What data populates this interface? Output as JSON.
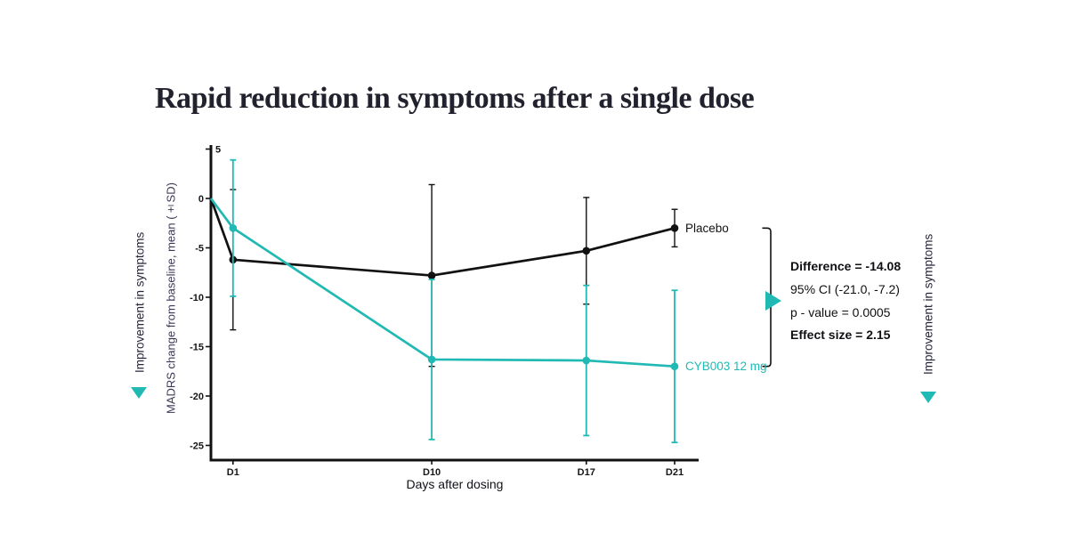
{
  "title": "Rapid reduction in symptoms after a single dose",
  "side_labels": {
    "left_improvement": "Improvement in symptoms",
    "right_improvement": "Improvement in symptoms"
  },
  "chart_data": {
    "type": "line",
    "title": "Rapid reduction in symptoms after a single dose",
    "xlabel": "Days after dosing",
    "ylabel": "MADRS change from baseline, mean (±SD)",
    "x_days": [
      0,
      1,
      10,
      17,
      21
    ],
    "xtick_days": [
      1,
      10,
      17,
      21
    ],
    "xtick_labels": [
      "D1",
      "D10",
      "D17",
      "D21"
    ],
    "yticks": [
      5,
      0,
      -5,
      -10,
      -15,
      -20,
      -25
    ],
    "xlim": [
      0,
      22
    ],
    "ylim": [
      -26.5,
      5.5
    ],
    "grid": false,
    "legend_position": "labels-at-line-end",
    "series": [
      {
        "name": "Placebo",
        "color": "#111111",
        "values": [
          0,
          -6.2,
          -7.8,
          -5.3,
          -3.0
        ],
        "sd": [
          null,
          7.1,
          9.2,
          5.4,
          1.9
        ]
      },
      {
        "name": "CYB003 12 mg",
        "color": "#20b9b3",
        "values": [
          0,
          -3.0,
          -16.3,
          -16.4,
          -17.0
        ],
        "sd": [
          null,
          6.9,
          8.1,
          7.6,
          7.7
        ]
      }
    ],
    "annotation_bracket": {
      "from_value": -3.0,
      "to_value": -17.0,
      "at_day": 21
    }
  },
  "stats_panel": {
    "lines": [
      {
        "text": "Difference = -14.08",
        "bold": true
      },
      {
        "text": "95% CI (-21.0, -7.2)",
        "bold": false
      },
      {
        "text": "p - value = 0.0005",
        "bold": false
      },
      {
        "text": "Effect size = 2.15",
        "bold": true
      }
    ]
  },
  "colors": {
    "accent_teal": "#20b9b3",
    "line_black": "#111111",
    "axis_label": "#3a3a55",
    "title_color": "#22222e"
  }
}
